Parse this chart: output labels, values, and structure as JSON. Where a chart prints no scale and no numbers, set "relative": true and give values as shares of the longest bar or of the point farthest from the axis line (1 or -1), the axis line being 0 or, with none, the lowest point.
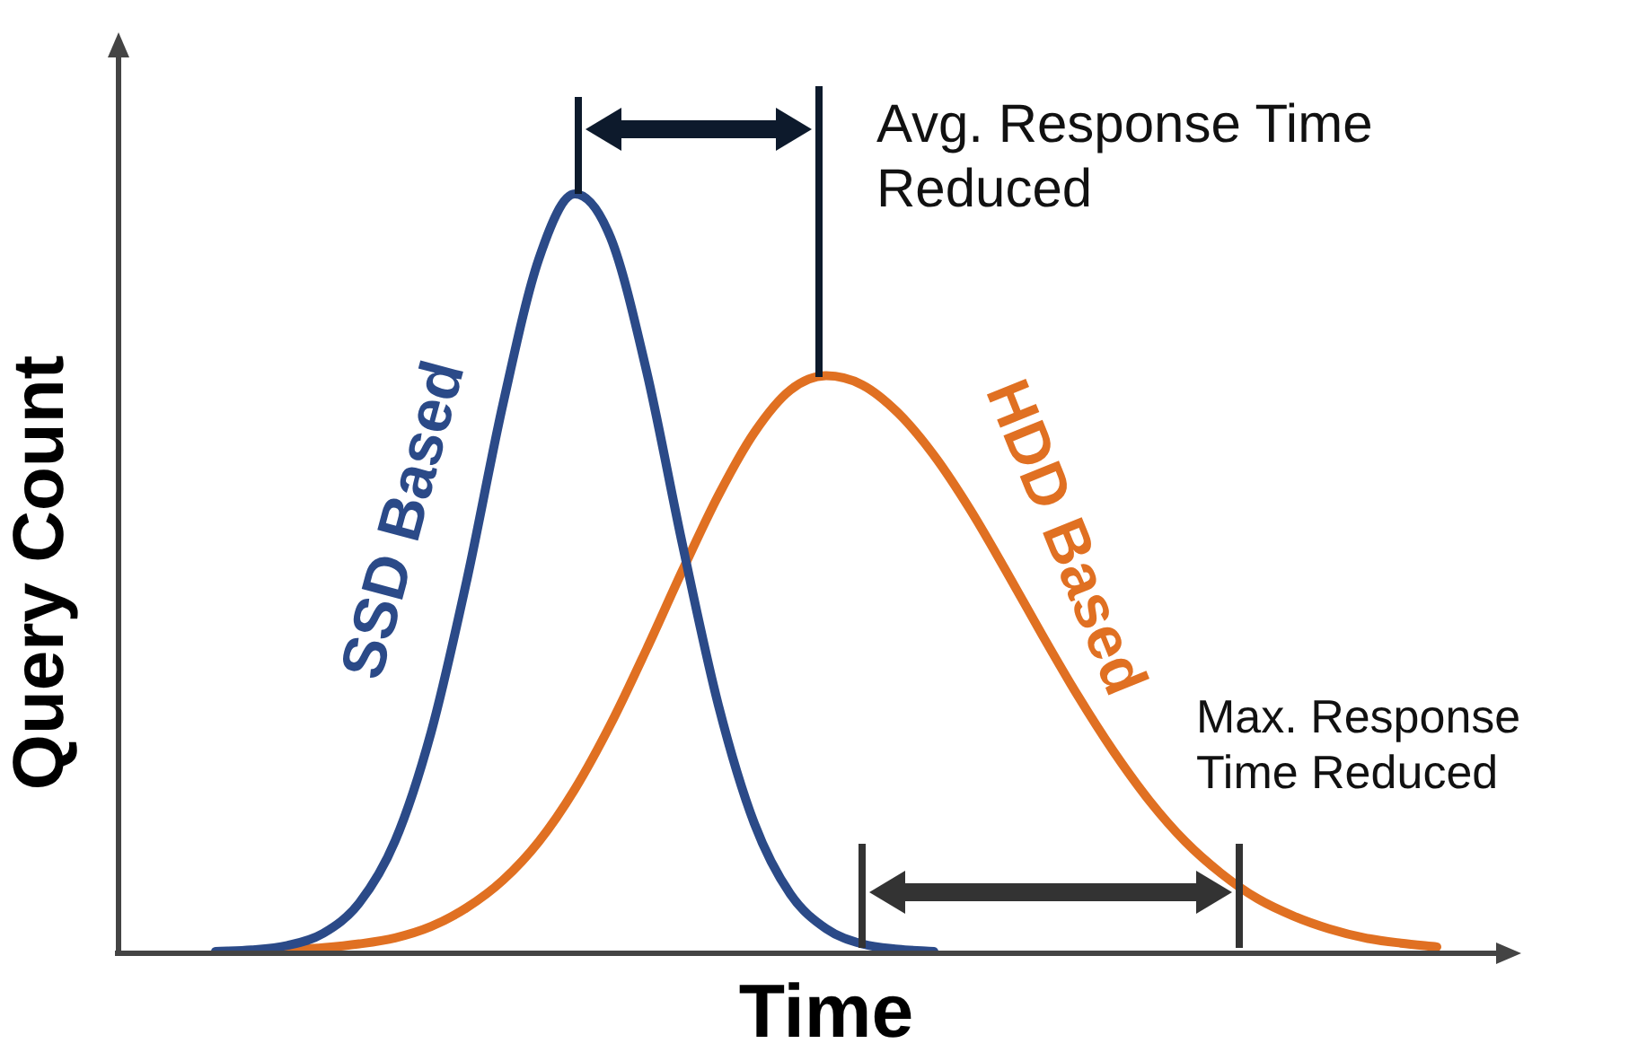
{
  "chart_data": {
    "type": "line",
    "relative": true,
    "xlabel": "Time",
    "ylabel": "Query Count",
    "categories": [
      null,
      null,
      null,
      null,
      null,
      null,
      null,
      null,
      null,
      null,
      null,
      null,
      null,
      null,
      null,
      null,
      null,
      null,
      null,
      null,
      null,
      null,
      null,
      null,
      null,
      null,
      null,
      null,
      null,
      null,
      null,
      null,
      null,
      null,
      null
    ],
    "series": [
      {
        "name": "SSD Based",
        "color": "#2b4a88",
        "values": [
          0.0,
          0.002,
          0.008,
          0.024,
          0.064,
          0.146,
          0.289,
          0.491,
          0.722,
          0.914,
          1,
          0.942,
          0.766,
          0.537,
          0.325,
          0.169,
          0.076,
          0.03,
          0.01,
          0.003,
          0.0,
          null,
          null,
          null,
          null,
          null,
          null,
          null,
          null,
          null,
          null,
          null,
          null,
          null,
          null
        ]
      },
      {
        "name": "HDD Based",
        "color": "#e07022",
        "values": [
          null,
          null,
          0.002,
          0.005,
          0.01,
          0.018,
          0.033,
          0.058,
          0.094,
          0.145,
          0.214,
          0.3,
          0.399,
          0.503,
          0.602,
          0.685,
          0.741,
          0.76,
          0.748,
          0.711,
          0.655,
          0.584,
          0.503,
          0.419,
          0.338,
          0.264,
          0.199,
          0.145,
          0.103,
          0.07,
          0.047,
          0.03,
          0.018,
          0.011,
          0.006
        ]
      }
    ],
    "annotations": [
      "Avg. Response Time Reduced",
      "Max. Response Time Reduced"
    ]
  }
}
